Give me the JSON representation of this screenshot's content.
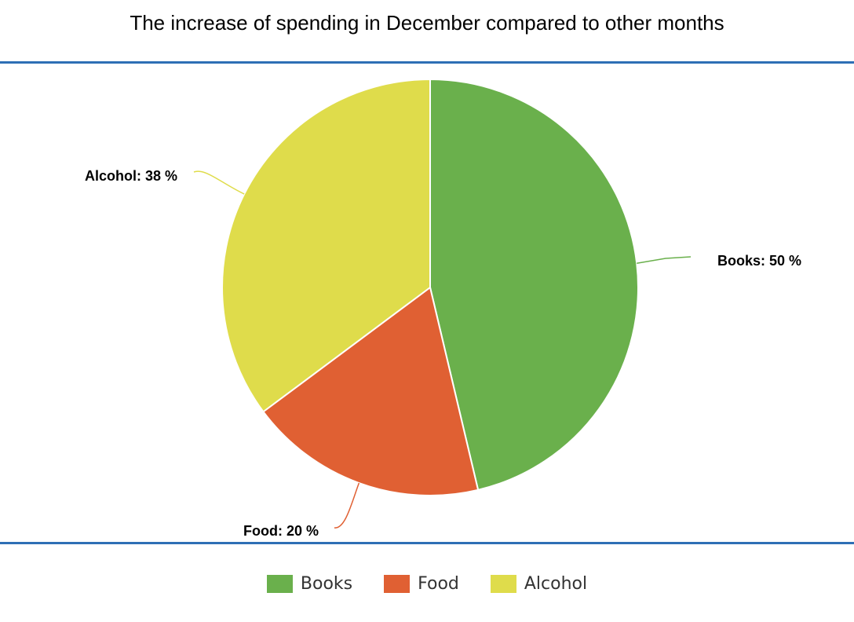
{
  "chart_data": {
    "type": "pie",
    "title": "The increase of spending in December compared to other months",
    "slices": [
      {
        "name": "Books",
        "value": 50,
        "label": "Books: 50 %",
        "color": "#6ab04c"
      },
      {
        "name": "Food",
        "value": 20,
        "label": "Food: 20 %",
        "color": "#e06033"
      },
      {
        "name": "Alcohol",
        "value": 38,
        "label": "Alcohol: 38 %",
        "color": "#dfdc4b"
      }
    ],
    "legend_placement": "bottom"
  },
  "accent_color": "#2e6fb5"
}
